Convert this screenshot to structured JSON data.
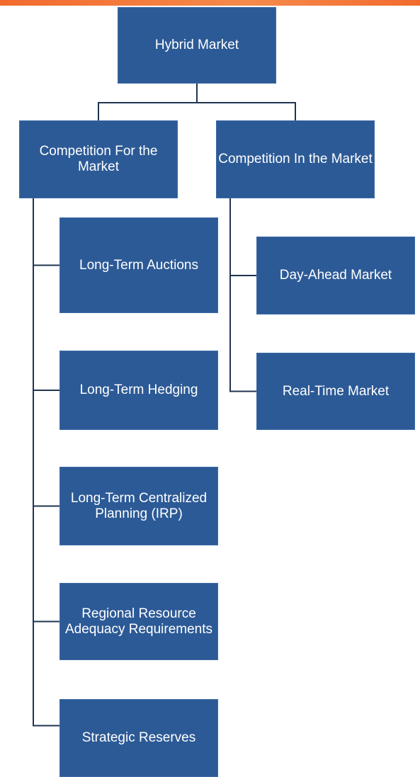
{
  "root": {
    "label": "Hybrid Market"
  },
  "branches": [
    {
      "label": "Competition For the Market",
      "children": [
        "Long-Term Auctions",
        "Long-Term Hedging",
        "Long-Term Centralized Planning (IRP)",
        "Regional Resource Adequacy Requirements",
        "Strategic Reserves"
      ]
    },
    {
      "label": "Competition In the Market",
      "children": [
        "Day-Ahead Market",
        "Real-Time Market"
      ]
    }
  ]
}
